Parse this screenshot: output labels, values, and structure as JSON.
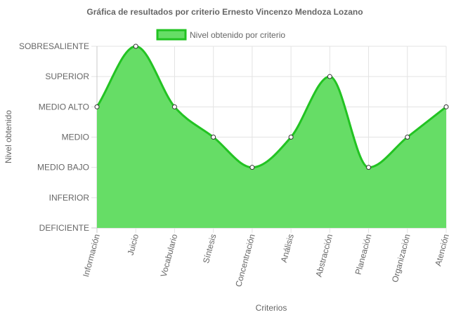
{
  "chart_data": {
    "type": "area",
    "title": "Gráfica de resultados por criterio Ernesto Vincenzo Mendoza Lozano",
    "xlabel": "Criterios",
    "ylabel": "Nivel obtenido",
    "categories": [
      "Información",
      "Juicio",
      "Vocabulario",
      "Síntesis",
      "Concentración",
      "Análisis",
      "Abstracción",
      "Planeación",
      "Organización",
      "Atención"
    ],
    "y_levels": [
      "DEFICIENTE",
      "INFERIOR",
      "MEDIO BAJO",
      "MEDIO",
      "MEDIO ALTO",
      "SUPERIOR",
      "SOBRESALIENTE"
    ],
    "series": [
      {
        "name": "Nivel obtenido por criterio",
        "values": [
          4,
          6,
          4,
          3,
          2,
          3,
          5,
          2,
          3,
          4
        ],
        "value_labels": [
          "MEDIO ALTO",
          "SOBRESALIENTE",
          "MEDIO ALTO",
          "MEDIO",
          "MEDIO BAJO",
          "MEDIO",
          "SUPERIOR",
          "MEDIO BAJO",
          "MEDIO",
          "MEDIO ALTO"
        ]
      }
    ],
    "ylim": [
      0,
      6
    ],
    "grid": true,
    "legend": "top",
    "colors": {
      "fill": "#66dd66",
      "line": "#22c322",
      "point_fill": "#ffffff",
      "point_stroke": "#333333",
      "grid": "#e3e3e3",
      "axis": "#c8c8c8"
    }
  }
}
